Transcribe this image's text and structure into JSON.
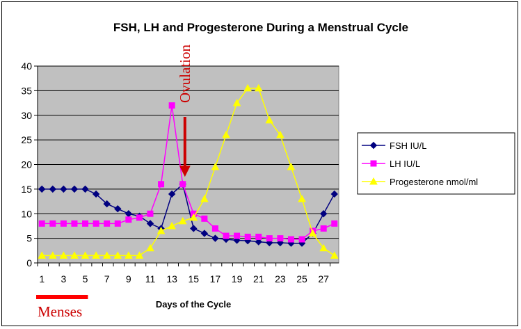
{
  "chart_data": {
    "type": "line",
    "title": "FSH, LH and Progesterone During a Menstrual Cycle",
    "xlabel": "Days of the Cycle",
    "ylabel": "",
    "xlim": [
      1,
      28
    ],
    "ylim": [
      0,
      40
    ],
    "x_ticks": [
      1,
      3,
      5,
      7,
      9,
      11,
      13,
      15,
      17,
      19,
      21,
      23,
      25,
      27
    ],
    "y_ticks": [
      0,
      5,
      10,
      15,
      20,
      25,
      30,
      35,
      40
    ],
    "grid": true,
    "legend_position": "right",
    "plot_background": "#c0c0c0",
    "x": [
      1,
      2,
      3,
      4,
      5,
      6,
      7,
      8,
      9,
      10,
      11,
      12,
      13,
      14,
      15,
      16,
      17,
      18,
      19,
      20,
      21,
      22,
      23,
      24,
      25,
      26,
      27,
      28
    ],
    "series": [
      {
        "name": "FSH IU/L",
        "color": "#000080",
        "marker": "diamond",
        "values": [
          15,
          15,
          15,
          15,
          15,
          14,
          12,
          11,
          10,
          9.5,
          8,
          7,
          14,
          16,
          7,
          6,
          5,
          4.8,
          4.6,
          4.5,
          4.3,
          4.1,
          4.1,
          4,
          4,
          6,
          10,
          14
        ]
      },
      {
        "name": "LH IU/L",
        "color": "#ff00ff",
        "marker": "square",
        "values": [
          8,
          8,
          8,
          8,
          8,
          8,
          8,
          8,
          8.8,
          9.2,
          10,
          16,
          32,
          16,
          10,
          9,
          7,
          5.5,
          5.5,
          5.3,
          5.3,
          5,
          5,
          4.8,
          4.8,
          6.5,
          7,
          8
        ]
      },
      {
        "name": "Progesterone nmol/ml",
        "color": "#ffff00",
        "marker": "triangle",
        "values": [
          1.5,
          1.5,
          1.5,
          1.5,
          1.5,
          1.5,
          1.5,
          1.5,
          1.5,
          1.5,
          3,
          6.5,
          7.5,
          8.5,
          9.2,
          13,
          19.5,
          26,
          32.5,
          35.5,
          35.5,
          29,
          26,
          19.5,
          13,
          6,
          3,
          1.5
        ]
      }
    ],
    "annotations": [
      {
        "text": "Ovulation",
        "color": "#cc0000",
        "at_x": 14.2,
        "arrow_to_y": 17.5
      },
      {
        "text": "Menses",
        "color": "#cc0000",
        "from_x": 1,
        "to_x": 6
      }
    ]
  }
}
